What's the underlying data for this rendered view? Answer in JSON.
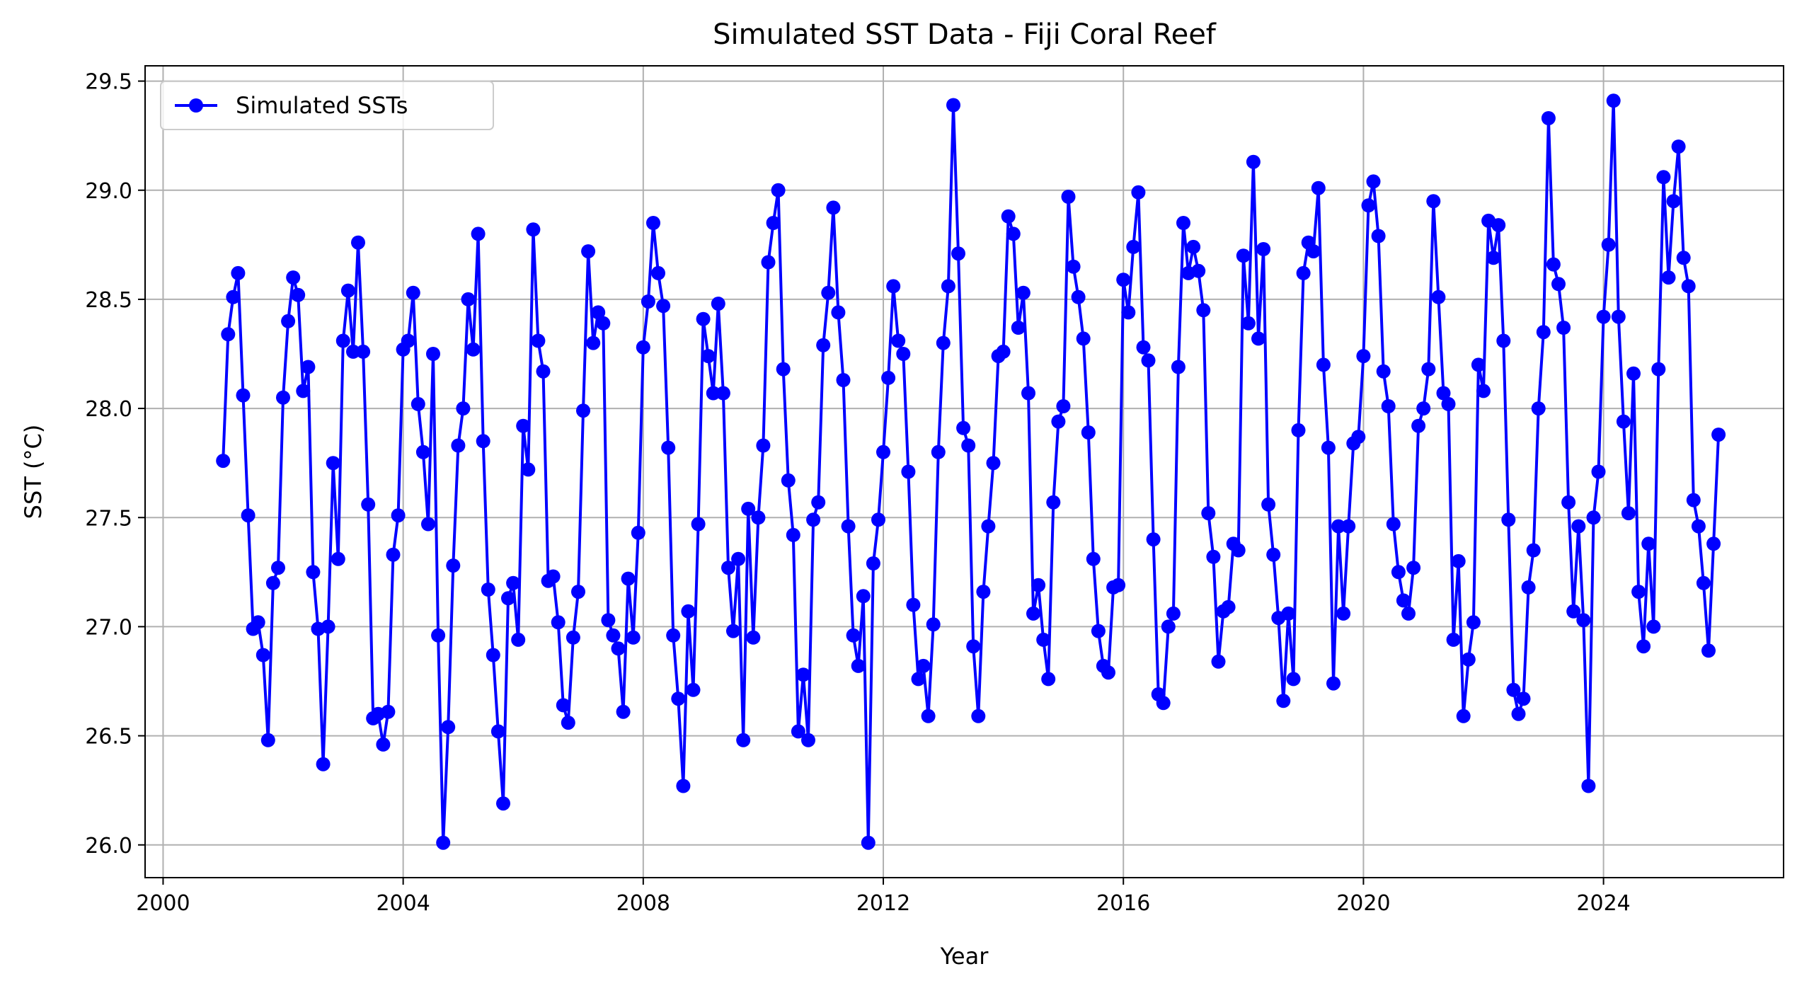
{
  "chart_data": {
    "type": "line",
    "title": "Simulated SST Data - Fiji Coral Reef",
    "xlabel": "Year",
    "ylabel": "SST (°C)",
    "xlim": [
      1999.7,
      2027.0
    ],
    "ylim": [
      25.85,
      29.57
    ],
    "x_ticks": [
      2000,
      2004,
      2008,
      2012,
      2016,
      2020,
      2024
    ],
    "y_ticks": [
      26.0,
      26.5,
      27.0,
      27.5,
      28.0,
      28.5,
      29.0,
      29.5
    ],
    "y_tick_labels": [
      "26.0",
      "26.5",
      "27.0",
      "27.5",
      "28.0",
      "28.5",
      "29.0",
      "29.5"
    ],
    "grid": true,
    "legend_position": "top-left",
    "color": "#0000ff",
    "marker": "circle",
    "x_start": 2001.0,
    "x_step_months": 1,
    "series": [
      {
        "name": "Simulated SSTs",
        "values": [
          27.76,
          28.34,
          28.51,
          28.62,
          28.06,
          27.51,
          26.99,
          27.02,
          26.87,
          26.48,
          27.2,
          27.27,
          28.05,
          28.4,
          28.6,
          28.52,
          28.08,
          28.19,
          27.25,
          26.99,
          26.37,
          27.0,
          27.75,
          27.31,
          28.31,
          28.54,
          28.26,
          28.76,
          28.26,
          27.56,
          26.58,
          26.6,
          26.46,
          26.61,
          27.33,
          27.51,
          28.27,
          28.31,
          28.53,
          28.02,
          27.8,
          27.47,
          28.25,
          26.96,
          26.01,
          26.54,
          27.28,
          27.83,
          28.0,
          28.5,
          28.27,
          28.8,
          27.85,
          27.17,
          26.87,
          26.52,
          26.19,
          27.13,
          27.2,
          26.94,
          27.92,
          27.72,
          28.82,
          28.31,
          28.17,
          27.21,
          27.23,
          27.02,
          26.64,
          26.56,
          26.95,
          27.16,
          27.99,
          28.72,
          28.3,
          28.44,
          28.39,
          27.03,
          26.96,
          26.9,
          26.61,
          27.22,
          26.95,
          27.43,
          28.28,
          28.49,
          28.85,
          28.62,
          28.47,
          27.82,
          26.96,
          26.67,
          26.27,
          27.07,
          26.71,
          27.47,
          28.41,
          28.24,
          28.07,
          28.48,
          28.07,
          27.27,
          26.98,
          27.31,
          26.48,
          27.54,
          26.95,
          27.5,
          27.83,
          28.67,
          28.85,
          29.0,
          28.18,
          27.67,
          27.42,
          26.52,
          26.78,
          26.48,
          27.49,
          27.57,
          28.29,
          28.53,
          28.92,
          28.44,
          28.13,
          27.46,
          26.96,
          26.82,
          27.14,
          26.01,
          27.29,
          27.49,
          27.8,
          28.14,
          28.56,
          28.31,
          28.25,
          27.71,
          27.1,
          26.76,
          26.82,
          26.59,
          27.01,
          27.8,
          28.3,
          28.56,
          29.39,
          28.71,
          27.91,
          27.83,
          26.91,
          26.59,
          27.16,
          27.46,
          27.75,
          28.24,
          28.26,
          28.88,
          28.8,
          28.37,
          28.53,
          28.07,
          27.06,
          27.19,
          26.94,
          26.76,
          27.57,
          27.94,
          28.01,
          28.97,
          28.65,
          28.51,
          28.32,
          27.89,
          27.31,
          26.98,
          26.82,
          26.79,
          27.18,
          27.19,
          28.59,
          28.44,
          28.74,
          28.99,
          28.28,
          28.22,
          27.4,
          26.69,
          26.65,
          27.0,
          27.06,
          28.19,
          28.85,
          28.62,
          28.74,
          28.63,
          28.45,
          27.52,
          27.32,
          26.84,
          27.07,
          27.09,
          27.38,
          27.35,
          28.7,
          28.39,
          29.13,
          28.32,
          28.73,
          27.56,
          27.33,
          27.04,
          26.66,
          27.06,
          26.76,
          27.9,
          28.62,
          28.76,
          28.72,
          29.01,
          28.2,
          27.82,
          26.74,
          27.46,
          27.06,
          27.46,
          27.84,
          27.87,
          28.24,
          28.93,
          29.04,
          28.79,
          28.17,
          28.01,
          27.47,
          27.25,
          27.12,
          27.06,
          27.27,
          27.92,
          28.0,
          28.18,
          28.95,
          28.51,
          28.07,
          28.02,
          26.94,
          27.3,
          26.59,
          26.85,
          27.02,
          28.2,
          28.08,
          28.86,
          28.69,
          28.84,
          28.31,
          27.49,
          26.71,
          26.6,
          26.67,
          27.18,
          27.35,
          28.0,
          28.35,
          29.33,
          28.66,
          28.57,
          28.37,
          27.57,
          27.07,
          27.46,
          27.03,
          26.27,
          27.5,
          27.71,
          28.42,
          28.75,
          29.41,
          28.42,
          27.94,
          27.52,
          28.16,
          27.16,
          26.91,
          27.38,
          27.0,
          28.18,
          29.06,
          28.6,
          28.95,
          29.2,
          28.69,
          28.56,
          27.58,
          27.46,
          27.2,
          26.89,
          27.38,
          27.88
        ]
      }
    ]
  }
}
